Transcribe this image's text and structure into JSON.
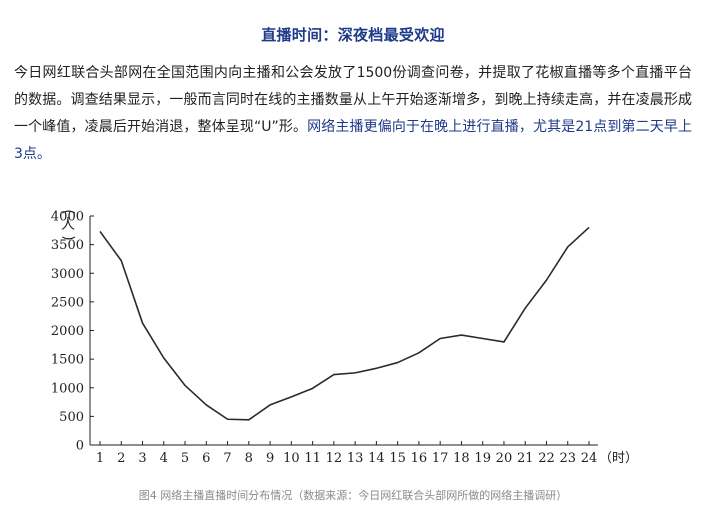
{
  "article": {
    "headline": "直播时间：深夜档最受欢迎",
    "paragraph_part1": "今日网红联合头部网在全国范围内向主播和公会发放了1500份调查问卷，并提取了花椒直播等多个直播平台的数据。调查结果显示，一般而言同时在线的主播数量从上午开始逐渐增多，到晚上持续走高，并在凌晨形成一个峰值，凌晨后开始消退，整体呈现“U”形。",
    "paragraph_part2": "网络主播更偏向于在晚上进行直播，尤其是21点到第二天早上3点。"
  },
  "colors": {
    "headline": "#1f3a8a",
    "highlight": "#1f3a8a",
    "line": "#2a2a2a",
    "caption": "#8a8a8a"
  },
  "chart_data": {
    "type": "line",
    "title": "",
    "xlabel": "（时）",
    "ylabel": "（人）",
    "x": [
      1,
      2,
      3,
      4,
      5,
      6,
      7,
      8,
      9,
      10,
      11,
      12,
      13,
      14,
      15,
      16,
      17,
      18,
      19,
      20,
      21,
      22,
      23,
      24
    ],
    "series": [
      {
        "values": [
          3730,
          3220,
          2130,
          1520,
          1040,
          700,
          450,
          440,
          700,
          840,
          990,
          1230,
          1260,
          1340,
          1440,
          1610,
          1860,
          1920,
          1860,
          1800,
          2390,
          2880,
          3460,
          3800
        ]
      }
    ],
    "xlim": [
      1,
      24
    ],
    "ylim": [
      0,
      4000
    ],
    "yticks": [
      0,
      500,
      1000,
      1500,
      2000,
      2500,
      3000,
      3500,
      4000
    ],
    "xticks": [
      1,
      2,
      3,
      4,
      5,
      6,
      7,
      8,
      9,
      10,
      11,
      12,
      13,
      14,
      15,
      16,
      17,
      18,
      19,
      20,
      21,
      22,
      23,
      24
    ],
    "grid": false,
    "legend": "none"
  },
  "caption": "图4 网络主播直播时间分布情况（数据来源：今日网红联合头部网所做的网络主播调研）"
}
